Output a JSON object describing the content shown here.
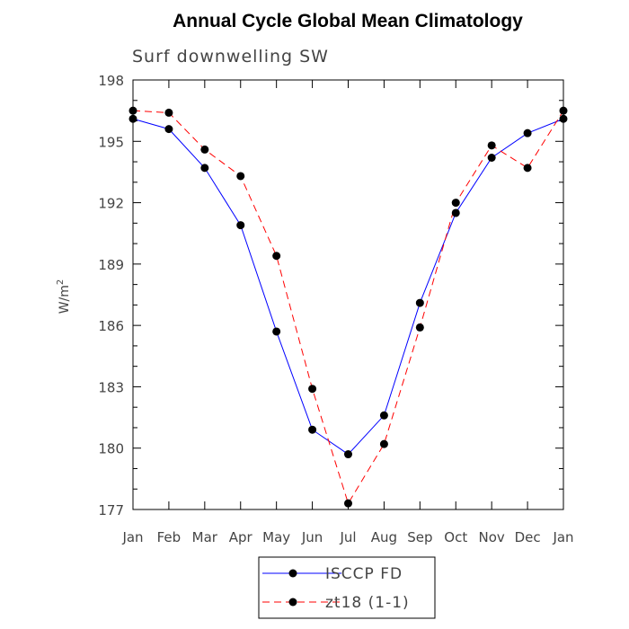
{
  "chart_data": {
    "type": "line",
    "title": "Annual Cycle Global Mean Climatology",
    "subtitle": "Surf downwelling SW",
    "xlabel": "",
    "ylabel": "W/m",
    "ylabel_superscript": "2",
    "categories": [
      "Jan",
      "Feb",
      "Mar",
      "Apr",
      "May",
      "Jun",
      "Jul",
      "Aug",
      "Sep",
      "Oct",
      "Nov",
      "Dec",
      "Jan"
    ],
    "ylim": [
      177,
      198
    ],
    "yticks": [
      "177",
      "180",
      "183",
      "186",
      "189",
      "192",
      "195",
      "198"
    ],
    "grid": false,
    "legend_position": "bottom-center",
    "series": [
      {
        "name": "ISCCP FD",
        "color": "#0000ff",
        "dash": "solid",
        "values": [
          196.1,
          195.6,
          193.7,
          190.9,
          185.7,
          180.9,
          179.7,
          181.6,
          187.1,
          191.5,
          194.2,
          195.4,
          196.1
        ]
      },
      {
        "name": "zt18 (1-1)",
        "color": "#ff0000",
        "dash": "dashed",
        "values": [
          196.5,
          196.4,
          194.6,
          193.3,
          189.4,
          182.9,
          177.3,
          180.2,
          185.9,
          192.0,
          194.8,
          193.7,
          196.5
        ]
      }
    ]
  }
}
